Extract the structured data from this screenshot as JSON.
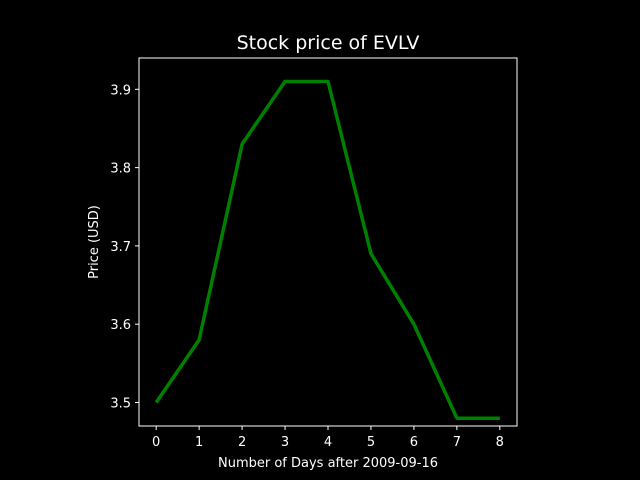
{
  "chart_data": {
    "type": "line",
    "title": "Stock price of EVLV",
    "xlabel": "Number of Days after 2009-09-16",
    "ylabel": "Price (USD)",
    "x": [
      0,
      1,
      2,
      3,
      4,
      5,
      6,
      7,
      8
    ],
    "xlim": [
      -0.4,
      8.4
    ],
    "ylim": [
      3.47,
      3.94
    ],
    "x_ticks": [
      0,
      1,
      2,
      3,
      4,
      5,
      6,
      7,
      8
    ],
    "y_ticks": [
      3.5,
      3.6,
      3.7,
      3.8,
      3.9
    ],
    "grid": false,
    "series": [
      {
        "values": [
          3.5,
          3.58,
          3.83,
          3.91,
          3.91,
          3.69,
          3.6,
          3.48,
          3.48
        ],
        "color": "#008000"
      }
    ]
  },
  "colors": {
    "background": "#000000",
    "axes": "#ffffff"
  }
}
